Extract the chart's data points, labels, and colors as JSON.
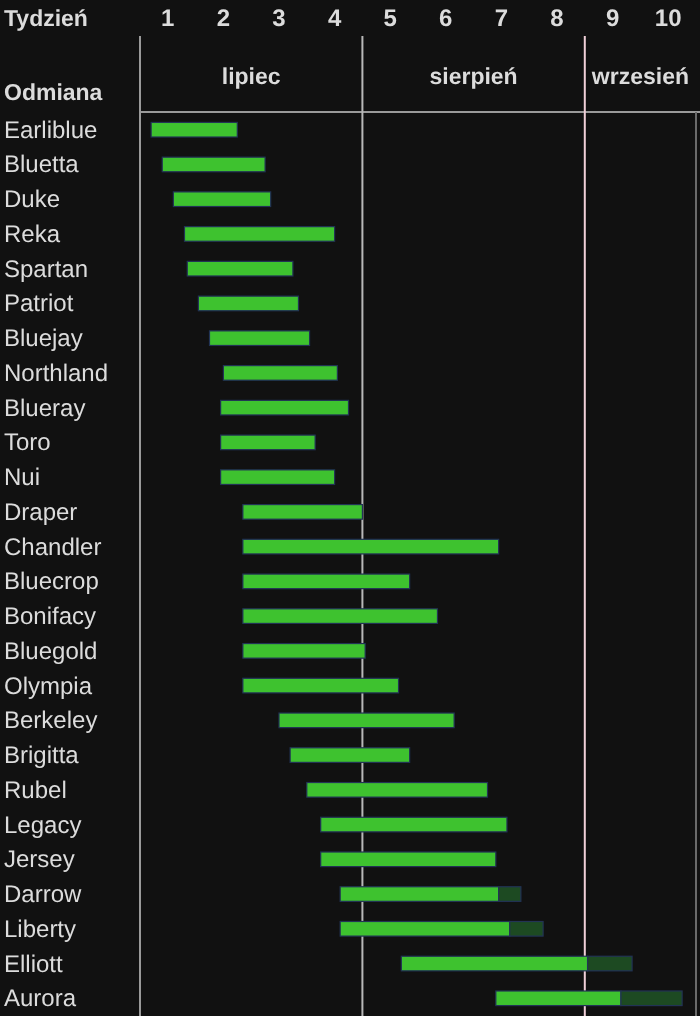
{
  "chart_data": {
    "type": "bar",
    "orientation": "horizontal",
    "xlabel": "Tydzień",
    "ylabel": "Odmiana",
    "categories": [
      "Earliblue",
      "Bluetta",
      "Duke",
      "Reka",
      "Spartan",
      "Patriot",
      "Bluejay",
      "Northland",
      "Blueray",
      "Toro",
      "Nui",
      "Draper",
      "Chandler",
      "Bluecrop",
      "Bonifacy",
      "Bluegold",
      "Olympia",
      "Berkeley",
      "Brigitta",
      "Rubel",
      "Legacy",
      "Jersey",
      "Darrow",
      "Liberty",
      "Elliott",
      "Aurora"
    ],
    "series": [
      {
        "color": "#3ec22f",
        "base": [
          0.2,
          0.4,
          0.6,
          0.8,
          0.85,
          1.05,
          1.25,
          1.5,
          1.45,
          1.45,
          1.45,
          1.85,
          1.85,
          1.85,
          1.85,
          1.85,
          1.85,
          2.5,
          2.7,
          3.0,
          3.25,
          3.25,
          3.6,
          3.6,
          4.7,
          6.4
        ],
        "values": [
          1.55,
          1.85,
          1.75,
          2.7,
          1.9,
          1.8,
          1.8,
          2.05,
          2.3,
          1.7,
          2.05,
          2.15,
          4.6,
          3.0,
          3.5,
          2.2,
          2.8,
          3.15,
          2.15,
          3.25,
          3.35,
          3.15,
          2.85,
          3.05,
          3.35,
          2.25
        ]
      },
      {
        "color": "#1d4a22",
        "base": [
          null,
          null,
          null,
          null,
          null,
          null,
          null,
          null,
          null,
          null,
          null,
          null,
          null,
          null,
          null,
          null,
          null,
          null,
          null,
          null,
          null,
          null,
          6.45,
          6.65,
          8.05,
          8.65
        ],
        "values": [
          null,
          null,
          null,
          null,
          null,
          null,
          null,
          null,
          null,
          null,
          null,
          null,
          null,
          null,
          null,
          null,
          null,
          null,
          null,
          null,
          null,
          null,
          0.4,
          0.6,
          0.8,
          1.1
        ]
      }
    ],
    "xlim": [
      0,
      10
    ],
    "xticks": [
      {
        "value": 0.5,
        "label": "1"
      },
      {
        "value": 1.5,
        "label": "2"
      },
      {
        "value": 2.5,
        "label": "3"
      },
      {
        "value": 3.5,
        "label": "4"
      },
      {
        "value": 4.5,
        "label": "5"
      },
      {
        "value": 5.5,
        "label": "6"
      },
      {
        "value": 6.5,
        "label": "7"
      },
      {
        "value": 7.5,
        "label": "8"
      },
      {
        "value": 8.5,
        "label": "9"
      },
      {
        "value": 9.5,
        "label": "10"
      }
    ],
    "ref_lines": [
      {
        "axis": "x",
        "value": 4,
        "color": "#b8b8b8"
      },
      {
        "axis": "x",
        "value": 8,
        "color": "#f0d0d8"
      }
    ],
    "annotations": [
      "lipiec",
      "sierpień",
      "wrzesień"
    ],
    "grid": false
  }
}
